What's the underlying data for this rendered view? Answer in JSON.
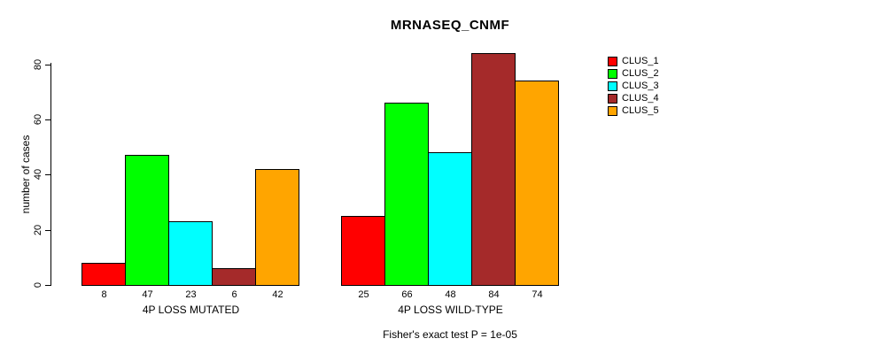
{
  "chart_data": {
    "type": "bar",
    "title": "MRNASEQ_CNMF",
    "ylabel": "number of cases",
    "xlabel": "",
    "annotation": "Fisher's exact test P = 1e-05",
    "ylim": [
      0,
      84
    ],
    "y_ticks": [
      0,
      20,
      40,
      60,
      80
    ],
    "grid": false,
    "legend_position": "right",
    "clusters": [
      {
        "name": "CLUS_1",
        "color": "#FF0000"
      },
      {
        "name": "CLUS_2",
        "color": "#00FF00"
      },
      {
        "name": "CLUS_3",
        "color": "#00FFFF"
      },
      {
        "name": "CLUS_4",
        "color": "#A52A2A"
      },
      {
        "name": "CLUS_5",
        "color": "#FFA500"
      }
    ],
    "groups": [
      {
        "label": "4P LOSS MUTATED",
        "values": [
          8,
          47,
          23,
          6,
          42
        ]
      },
      {
        "label": "4P LOSS WILD-TYPE",
        "values": [
          25,
          66,
          48,
          84,
          74
        ]
      }
    ]
  }
}
